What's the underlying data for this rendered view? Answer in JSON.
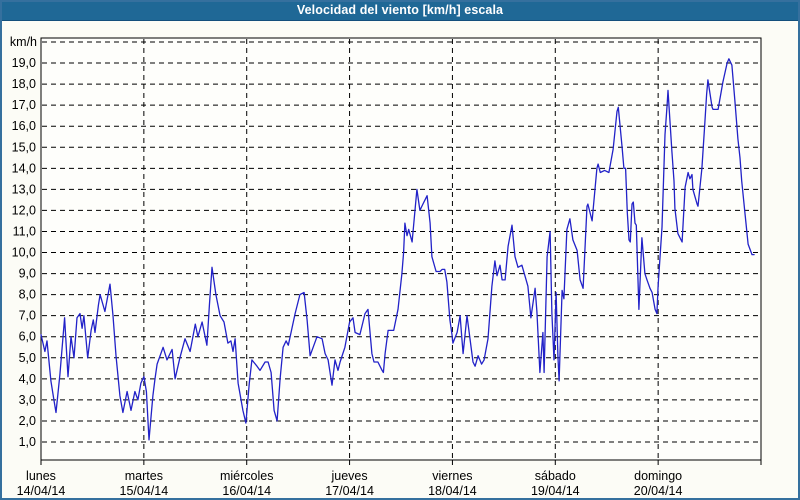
{
  "window": {
    "title": "Velocidad del viento [km/h] escala"
  },
  "colors": {
    "titlebar_bg": "#1f6896",
    "titlebar_text": "#ffffff",
    "outer_border": "#35709e",
    "page_bg": "#fcfcf6",
    "plot_bg": "#fefefb",
    "line": "#2222c8",
    "grid": "#000000",
    "label_text": "#000000"
  },
  "chart_data": {
    "type": "line",
    "title": "Velocidad del viento [km/h] escala",
    "ylabel": "km/h",
    "x_unit": "hours since lunes 14/04/14 00:00",
    "xlim_hours": [
      0,
      168
    ],
    "ylim": [
      0.1,
      20.2
    ],
    "grid": "dashed",
    "legend": "none",
    "yticks": [
      {
        "value": 1,
        "label": "1,0"
      },
      {
        "value": 2,
        "label": "2,0"
      },
      {
        "value": 3,
        "label": "3,0"
      },
      {
        "value": 4,
        "label": "4,0"
      },
      {
        "value": 5,
        "label": "5,0"
      },
      {
        "value": 6,
        "label": "6,0"
      },
      {
        "value": 7,
        "label": "7,0"
      },
      {
        "value": 8,
        "label": "8,0"
      },
      {
        "value": 9,
        "label": "9,0"
      },
      {
        "value": 10,
        "label": "10,0"
      },
      {
        "value": 11,
        "label": "11,0"
      },
      {
        "value": 12,
        "label": "12,0"
      },
      {
        "value": 13,
        "label": "13,0"
      },
      {
        "value": 14,
        "label": "14,0"
      },
      {
        "value": 15,
        "label": "15,0"
      },
      {
        "value": 16,
        "label": "16,0"
      },
      {
        "value": 17,
        "label": "17,0"
      },
      {
        "value": 18,
        "label": "18,0"
      },
      {
        "value": 19,
        "label": "19,0"
      }
    ],
    "xticks_days": [
      {
        "name": "lunes",
        "date": "14/04/14"
      },
      {
        "name": "martes",
        "date": "15/04/14"
      },
      {
        "name": "miércoles",
        "date": "16/04/14"
      },
      {
        "name": "jueves",
        "date": "17/04/14"
      },
      {
        "name": "viernes",
        "date": "18/04/14"
      },
      {
        "name": "sábado",
        "date": "19/04/14"
      },
      {
        "name": "domingo",
        "date": "20/04/14"
      }
    ],
    "series": [
      {
        "name": "Velocidad del viento [km/h]",
        "points": [
          [
            0.0,
            6.1
          ],
          [
            0.9,
            5.3
          ],
          [
            1.4,
            5.8
          ],
          [
            2.3,
            3.9
          ],
          [
            3.0,
            3.0
          ],
          [
            3.5,
            2.4
          ],
          [
            4.4,
            4.2
          ],
          [
            5.5,
            6.9
          ],
          [
            6.3,
            4.1
          ],
          [
            7.0,
            6.0
          ],
          [
            7.7,
            5.0
          ],
          [
            8.4,
            6.9
          ],
          [
            9.1,
            7.1
          ],
          [
            9.6,
            6.4
          ],
          [
            10.0,
            7.0
          ],
          [
            10.9,
            5.0
          ],
          [
            11.7,
            6.3
          ],
          [
            12.2,
            6.8
          ],
          [
            12.6,
            6.2
          ],
          [
            13.4,
            7.5
          ],
          [
            13.8,
            8.0
          ],
          [
            14.9,
            7.2
          ],
          [
            16.1,
            8.5
          ],
          [
            16.8,
            7.0
          ],
          [
            17.5,
            5.1
          ],
          [
            18.4,
            3.2
          ],
          [
            19.1,
            2.4
          ],
          [
            20.1,
            3.4
          ],
          [
            21.0,
            2.5
          ],
          [
            21.9,
            3.4
          ],
          [
            22.6,
            3.0
          ],
          [
            23.3,
            3.8
          ],
          [
            24.0,
            4.1
          ],
          [
            24.6,
            3.4
          ],
          [
            25.2,
            1.1
          ],
          [
            26.1,
            3.2
          ],
          [
            26.6,
            4.0
          ],
          [
            27.1,
            4.7
          ],
          [
            28.5,
            5.5
          ],
          [
            29.4,
            4.9
          ],
          [
            30.6,
            5.4
          ],
          [
            31.3,
            4.0
          ],
          [
            32.4,
            5.0
          ],
          [
            33.6,
            5.9
          ],
          [
            34.8,
            5.3
          ],
          [
            36.0,
            6.6
          ],
          [
            36.6,
            6.0
          ],
          [
            37.6,
            6.7
          ],
          [
            38.7,
            5.6
          ],
          [
            39.3,
            7.5
          ],
          [
            39.9,
            9.3
          ],
          [
            40.8,
            8.0
          ],
          [
            41.8,
            7.0
          ],
          [
            42.7,
            6.7
          ],
          [
            43.6,
            5.7
          ],
          [
            44.3,
            5.8
          ],
          [
            44.8,
            5.3
          ],
          [
            45.3,
            5.9
          ],
          [
            46.0,
            3.8
          ],
          [
            47.1,
            2.5
          ],
          [
            47.8,
            1.9
          ],
          [
            48.6,
            3.8
          ],
          [
            49.2,
            4.9
          ],
          [
            50.4,
            4.6
          ],
          [
            51.1,
            4.4
          ],
          [
            52.3,
            4.8
          ],
          [
            53.0,
            4.8
          ],
          [
            53.7,
            4.3
          ],
          [
            54.4,
            2.5
          ],
          [
            55.1,
            2.0
          ],
          [
            55.8,
            4.0
          ],
          [
            56.5,
            5.5
          ],
          [
            57.2,
            5.8
          ],
          [
            57.7,
            5.6
          ],
          [
            59.3,
            7.1
          ],
          [
            60.4,
            8.0
          ],
          [
            61.4,
            8.1
          ],
          [
            62.1,
            6.8
          ],
          [
            62.8,
            5.1
          ],
          [
            64.4,
            6.0
          ],
          [
            65.6,
            5.9
          ],
          [
            66.3,
            5.2
          ],
          [
            67.0,
            4.9
          ],
          [
            67.9,
            3.7
          ],
          [
            68.6,
            4.9
          ],
          [
            69.3,
            4.4
          ],
          [
            69.8,
            4.8
          ],
          [
            70.9,
            5.5
          ],
          [
            72.0,
            6.7
          ],
          [
            72.8,
            6.9
          ],
          [
            73.3,
            6.2
          ],
          [
            74.4,
            6.1
          ],
          [
            75.6,
            7.1
          ],
          [
            76.3,
            7.3
          ],
          [
            77.2,
            5.2
          ],
          [
            77.7,
            4.8
          ],
          [
            78.6,
            4.8
          ],
          [
            79.6,
            4.4
          ],
          [
            79.9,
            4.3
          ],
          [
            80.3,
            5.2
          ],
          [
            81.0,
            6.3
          ],
          [
            82.3,
            6.3
          ],
          [
            83.3,
            7.3
          ],
          [
            84.2,
            9.0
          ],
          [
            84.6,
            10.0
          ],
          [
            84.9,
            11.4
          ],
          [
            85.4,
            10.8
          ],
          [
            85.8,
            11.1
          ],
          [
            86.6,
            10.5
          ],
          [
            87.7,
            13.0
          ],
          [
            88.4,
            12.0
          ],
          [
            89.1,
            12.3
          ],
          [
            90.1,
            12.7
          ],
          [
            90.8,
            11.4
          ],
          [
            91.2,
            9.8
          ],
          [
            92.2,
            9.1
          ],
          [
            93.1,
            9.1
          ],
          [
            93.6,
            9.2
          ],
          [
            94.2,
            9.2
          ],
          [
            94.7,
            8.6
          ],
          [
            95.4,
            6.8
          ],
          [
            95.9,
            6.1
          ],
          [
            96.1,
            5.7
          ],
          [
            97.1,
            6.2
          ],
          [
            97.8,
            7.0
          ],
          [
            98.2,
            5.9
          ],
          [
            98.5,
            5.2
          ],
          [
            99.4,
            7.0
          ],
          [
            100.1,
            5.9
          ],
          [
            100.8,
            4.8
          ],
          [
            101.3,
            4.6
          ],
          [
            102.0,
            5.1
          ],
          [
            102.8,
            4.7
          ],
          [
            103.4,
            4.9
          ],
          [
            104.3,
            5.9
          ],
          [
            105.2,
            8.4
          ],
          [
            105.9,
            9.6
          ],
          [
            106.4,
            8.9
          ],
          [
            107.1,
            9.4
          ],
          [
            107.6,
            8.7
          ],
          [
            108.3,
            8.7
          ],
          [
            109.0,
            10.3
          ],
          [
            109.9,
            11.3
          ],
          [
            110.6,
            9.8
          ],
          [
            111.3,
            9.3
          ],
          [
            112.2,
            9.4
          ],
          [
            112.9,
            8.9
          ],
          [
            113.6,
            8.4
          ],
          [
            114.3,
            6.9
          ],
          [
            115.3,
            8.3
          ],
          [
            115.7,
            7.2
          ],
          [
            116.4,
            4.3
          ],
          [
            117.1,
            6.2
          ],
          [
            117.4,
            4.3
          ],
          [
            118.1,
            9.8
          ],
          [
            118.8,
            11.0
          ],
          [
            119.2,
            7.1
          ],
          [
            119.7,
            4.9
          ],
          [
            120.2,
            8.1
          ],
          [
            120.6,
            5.1
          ],
          [
            120.9,
            3.9
          ],
          [
            121.6,
            8.2
          ],
          [
            122.0,
            7.8
          ],
          [
            122.7,
            11.1
          ],
          [
            123.4,
            11.6
          ],
          [
            124.1,
            10.6
          ],
          [
            125.1,
            10.1
          ],
          [
            125.8,
            8.7
          ],
          [
            126.5,
            8.3
          ],
          [
            127.4,
            12.2
          ],
          [
            127.6,
            12.3
          ],
          [
            128.6,
            11.5
          ],
          [
            129.7,
            14.0
          ],
          [
            130.0,
            14.2
          ],
          [
            130.5,
            13.8
          ],
          [
            131.5,
            13.9
          ],
          [
            132.5,
            13.8
          ],
          [
            133.5,
            14.9
          ],
          [
            134.4,
            16.7
          ],
          [
            134.7,
            16.9
          ],
          [
            135.6,
            15.0
          ],
          [
            136.0,
            14.0
          ],
          [
            136.4,
            14.0
          ],
          [
            136.8,
            11.9
          ],
          [
            137.2,
            10.6
          ],
          [
            137.5,
            10.5
          ],
          [
            137.9,
            12.3
          ],
          [
            138.2,
            12.4
          ],
          [
            138.6,
            11.4
          ],
          [
            138.9,
            11.3
          ],
          [
            139.5,
            7.3
          ],
          [
            140.2,
            10.7
          ],
          [
            140.9,
            9.0
          ],
          [
            141.4,
            8.7
          ],
          [
            142.1,
            8.3
          ],
          [
            142.6,
            8.1
          ],
          [
            143.3,
            7.3
          ],
          [
            143.7,
            7.1
          ],
          [
            144.0,
            8.4
          ],
          [
            144.9,
            11.2
          ],
          [
            145.6,
            15.6
          ],
          [
            146.1,
            17.0
          ],
          [
            146.3,
            17.7
          ],
          [
            147.2,
            14.8
          ],
          [
            147.7,
            13.4
          ],
          [
            147.9,
            12.1
          ],
          [
            148.6,
            10.9
          ],
          [
            149.6,
            10.5
          ],
          [
            150.3,
            13.1
          ],
          [
            151.0,
            13.8
          ],
          [
            151.4,
            13.5
          ],
          [
            151.9,
            13.7
          ],
          [
            152.1,
            13.0
          ],
          [
            153.1,
            12.3
          ],
          [
            153.3,
            12.2
          ],
          [
            154.2,
            14.0
          ],
          [
            154.9,
            16.2
          ],
          [
            155.3,
            17.5
          ],
          [
            155.6,
            18.2
          ],
          [
            156.6,
            16.9
          ],
          [
            156.8,
            16.8
          ],
          [
            158.0,
            16.8
          ],
          [
            159.1,
            18.1
          ],
          [
            160.1,
            19.0
          ],
          [
            160.5,
            19.2
          ],
          [
            161.2,
            18.9
          ],
          [
            161.9,
            17.2
          ],
          [
            162.6,
            15.4
          ],
          [
            163.1,
            14.5
          ],
          [
            163.5,
            13.4
          ],
          [
            164.3,
            11.8
          ],
          [
            165.0,
            10.4
          ],
          [
            165.9,
            9.9
          ],
          [
            166.4,
            9.9
          ]
        ]
      }
    ]
  }
}
